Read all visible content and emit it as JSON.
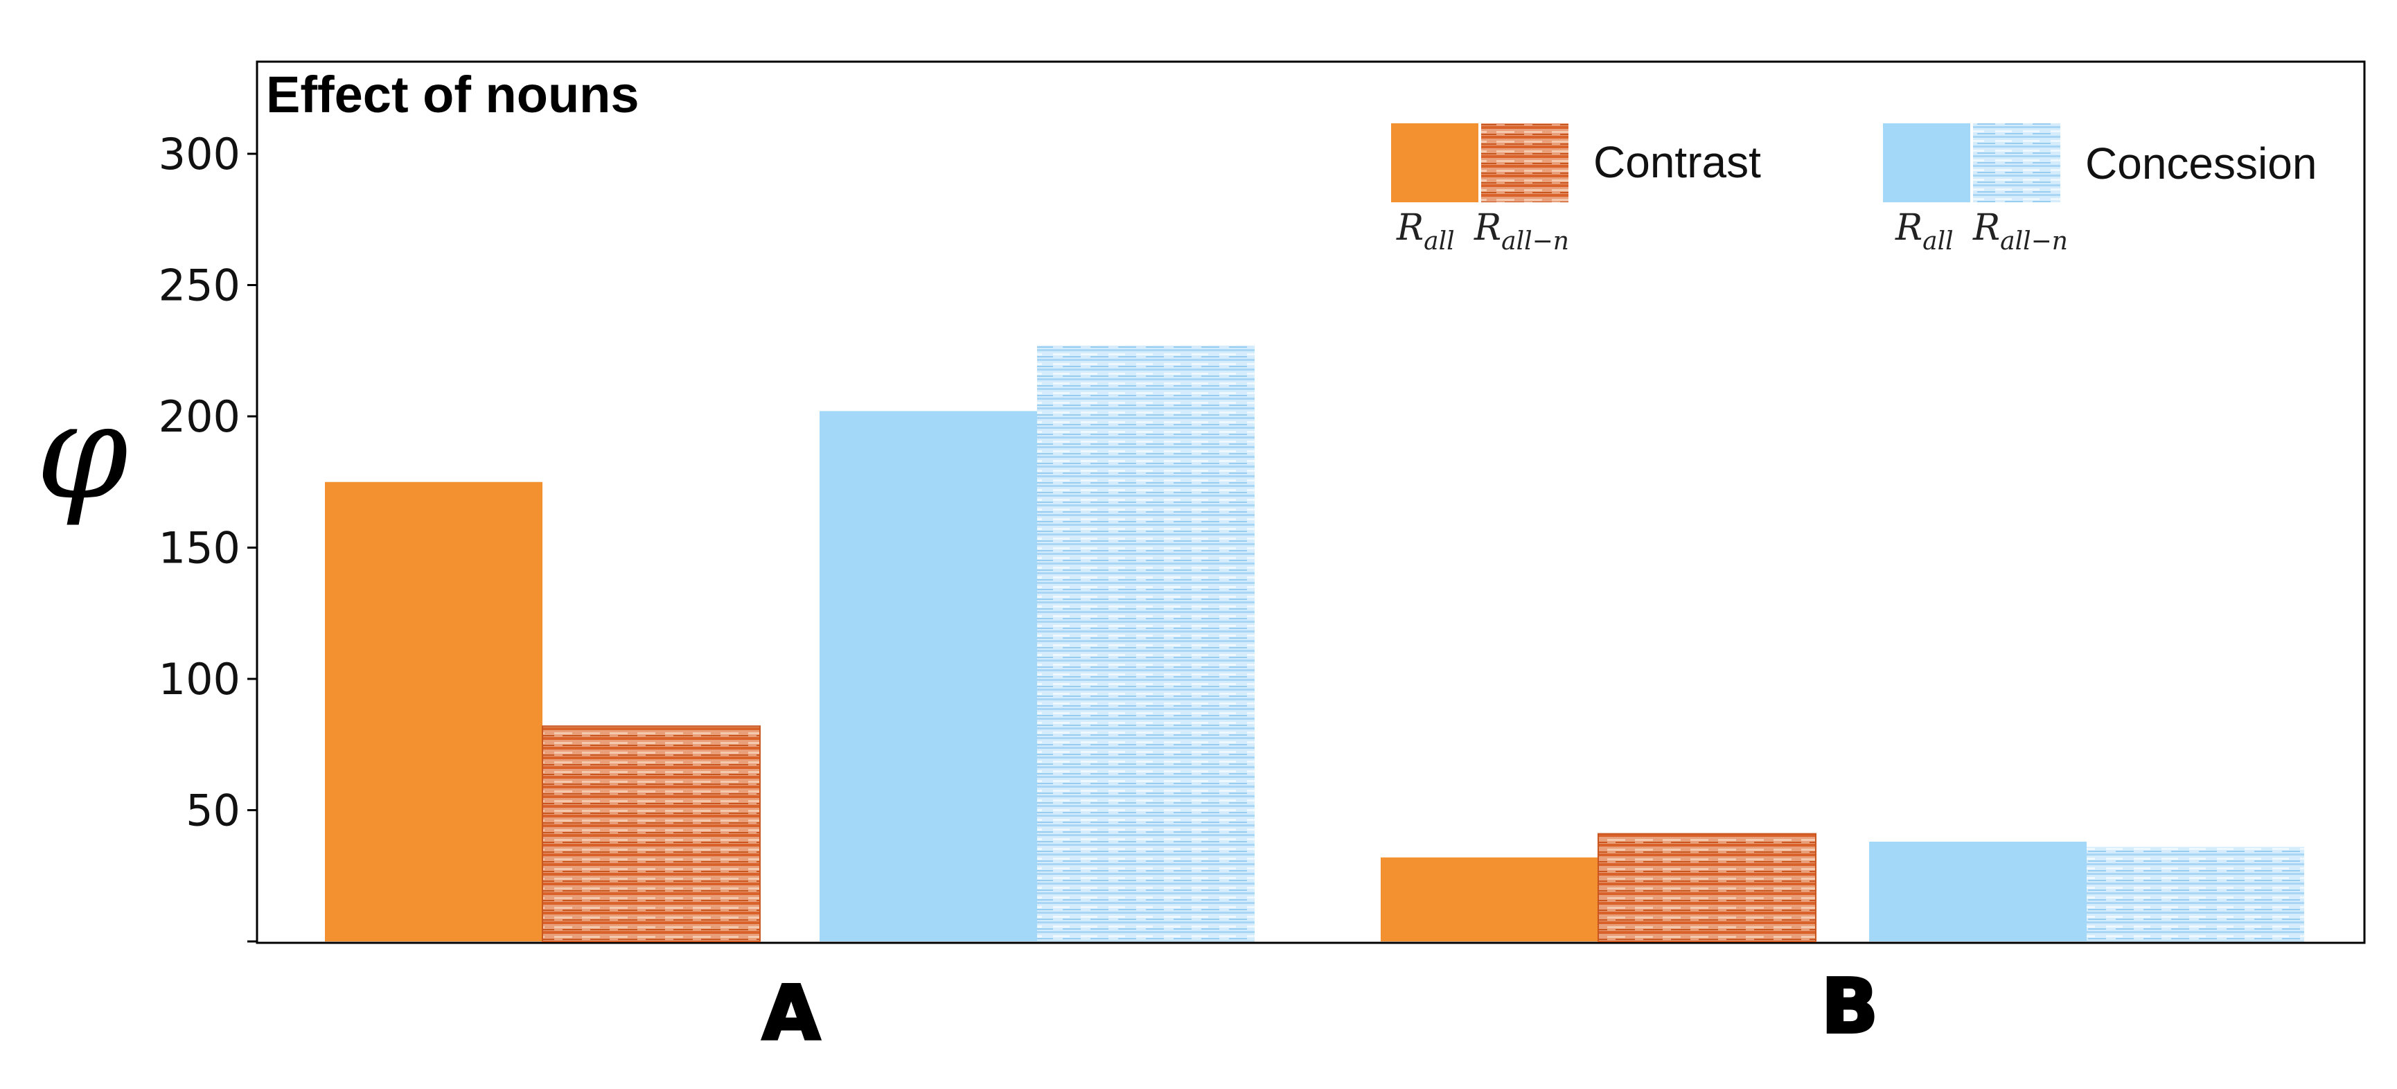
{
  "chart_data": {
    "type": "bar",
    "title": "Effect of nouns",
    "ylabel": "φ",
    "xlabel": "",
    "categories": [
      "A",
      "B"
    ],
    "ylim": [
      0,
      330
    ],
    "yticks": [
      50,
      100,
      150,
      200,
      250,
      300
    ],
    "grid": false,
    "legend_position": "top-right",
    "legend_groups": [
      {
        "label": "Contrast",
        "sub_labels": [
          "R",
          "R"
        ],
        "sub_scripts": [
          "all",
          "all−n"
        ]
      },
      {
        "label": "Concession",
        "sub_labels": [
          "R",
          "R"
        ],
        "sub_scripts": [
          "all",
          "all−n"
        ]
      }
    ],
    "series": [
      {
        "group": "Contrast",
        "variant": "R_all",
        "values": [
          175,
          32
        ],
        "color": "#f39030",
        "pattern": "solid"
      },
      {
        "group": "Contrast",
        "variant": "R_all-n",
        "values": [
          82,
          41
        ],
        "color": "#e0733a",
        "pattern": "hatched"
      },
      {
        "group": "Concession",
        "variant": "R_all",
        "values": [
          202,
          38
        ],
        "color": "#a3d8f9",
        "pattern": "solid"
      },
      {
        "group": "Concession",
        "variant": "R_all-n",
        "values": [
          227,
          36
        ],
        "color": "#bfe2f8",
        "pattern": "hatched"
      }
    ]
  }
}
